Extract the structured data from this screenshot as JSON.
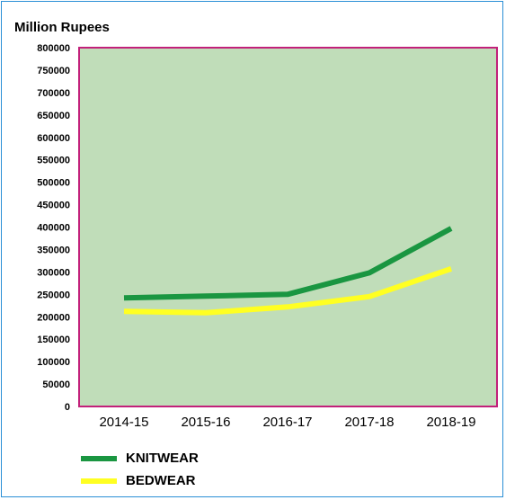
{
  "chart_data": {
    "type": "line",
    "title": "",
    "ylabel": "Million Rupees",
    "xlabel": "",
    "categories": [
      "2014-15",
      "2015-16",
      "2016-17",
      "2017-18",
      "2018-19"
    ],
    "ylim": [
      0,
      800000
    ],
    "yticks": [
      0,
      50000,
      100000,
      150000,
      200000,
      250000,
      300000,
      350000,
      400000,
      450000,
      500000,
      550000,
      600000,
      650000,
      700000,
      750000,
      800000
    ],
    "series": [
      {
        "name": "KNITWEAR",
        "values": [
          242000,
          246000,
          250000,
          298000,
          397000
        ],
        "color": "#1a9641"
      },
      {
        "name": "BEDWEAR",
        "values": [
          212000,
          209000,
          222000,
          245000,
          307000
        ],
        "color": "#ffff22"
      }
    ],
    "plot_background": "#c0ddb9",
    "plot_border_color": "#c2207a",
    "grid": false,
    "legend_position": "bottom-left"
  }
}
